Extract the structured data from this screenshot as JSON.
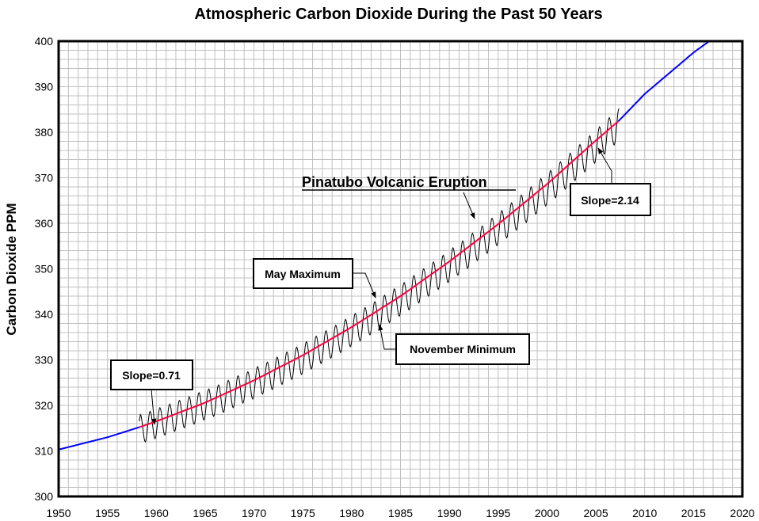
{
  "chart_data": {
    "type": "line",
    "title": "Atmospheric Carbon Dioxide During the Past 50 Years",
    "xlabel": "",
    "ylabel": "Carbon Dioxide PPM",
    "xlim": [
      1950,
      2020
    ],
    "ylim": [
      300,
      400
    ],
    "x_ticks": [
      "1950",
      "1955",
      "1960",
      "1965",
      "1970",
      "1975",
      "1980",
      "1985",
      "1990",
      "1995",
      "2000",
      "2005",
      "2010",
      "2015",
      "2020"
    ],
    "y_ticks": [
      "300",
      "310",
      "320",
      "330",
      "340",
      "350",
      "360",
      "370",
      "380",
      "390",
      "400"
    ],
    "grid": true,
    "grid_minor": {
      "x_step_years": 1,
      "y_step_ppm": 2
    },
    "colors": {
      "measured": "#000000",
      "fit": "#ff0040",
      "extrapolated": "#0000ff",
      "grid": "#c0c0c0"
    },
    "trend_extrapolated": {
      "x": [
        1950,
        1955,
        1958.25,
        1960,
        1965,
        1970,
        1975,
        1980,
        1985,
        1990,
        1995,
        2000,
        2005,
        2007.3,
        2010,
        2015,
        2016.6
      ],
      "y": [
        310.3,
        313.0,
        315.2,
        316.5,
        320.6,
        325.5,
        331.0,
        337.2,
        344.0,
        351.6,
        359.8,
        368.6,
        378.2,
        382.4,
        388.4,
        397.5,
        400.0
      ]
    },
    "trend_fit": {
      "x_start": 1958.25,
      "x_end": 2007.3
    },
    "measured": {
      "years": [
        1958,
        1959,
        1960,
        1961,
        1962,
        1963,
        1964,
        1965,
        1966,
        1967,
        1968,
        1969,
        1970,
        1971,
        1972,
        1973,
        1974,
        1975,
        1976,
        1977,
        1978,
        1979,
        1980,
        1981,
        1982,
        1983,
        1984,
        1985,
        1986,
        1987,
        1988,
        1989,
        1990,
        1991,
        1992,
        1993,
        1994,
        1995,
        1996,
        1997,
        1998,
        1999,
        2000,
        2001,
        2002,
        2003,
        2004,
        2005,
        2006,
        2007
      ],
      "may_maximum": [
        318.0,
        318.7,
        319.5,
        320.3,
        321.1,
        321.9,
        322.8,
        323.6,
        324.5,
        325.5,
        326.5,
        327.4,
        328.5,
        329.5,
        330.6,
        331.7,
        332.8,
        334.0,
        335.2,
        336.4,
        337.6,
        338.9,
        340.2,
        341.5,
        342.8,
        344.2,
        345.6,
        347.0,
        348.5,
        350.0,
        351.5,
        353.0,
        354.6,
        356.1,
        357.8,
        359.4,
        361.1,
        362.8,
        364.5,
        366.2,
        368.0,
        369.8,
        371.6,
        373.5,
        375.4,
        377.3,
        379.2,
        381.2,
        383.2,
        385.2
      ],
      "november_minimum": [
        312.0,
        312.7,
        313.5,
        314.3,
        315.1,
        315.9,
        316.8,
        317.6,
        318.5,
        319.5,
        320.5,
        321.4,
        322.5,
        323.5,
        324.6,
        325.7,
        326.8,
        328.0,
        329.2,
        330.4,
        331.6,
        332.9,
        334.2,
        335.5,
        336.8,
        338.2,
        339.6,
        341.0,
        342.5,
        344.0,
        345.5,
        347.0,
        348.6,
        350.1,
        351.8,
        353.4,
        355.1,
        356.8,
        358.5,
        360.2,
        362.0,
        363.8,
        365.6,
        367.5,
        369.4,
        371.3,
        373.2,
        375.2,
        377.2,
        379.2
      ]
    },
    "annotations": {
      "slope_early": "Slope=0.71",
      "slope_late": "Slope=2.14",
      "may_maximum": "May Maximum",
      "november_minimum": "November Minimum",
      "pinatubo": "Pinatubo Volcanic Eruption"
    }
  }
}
